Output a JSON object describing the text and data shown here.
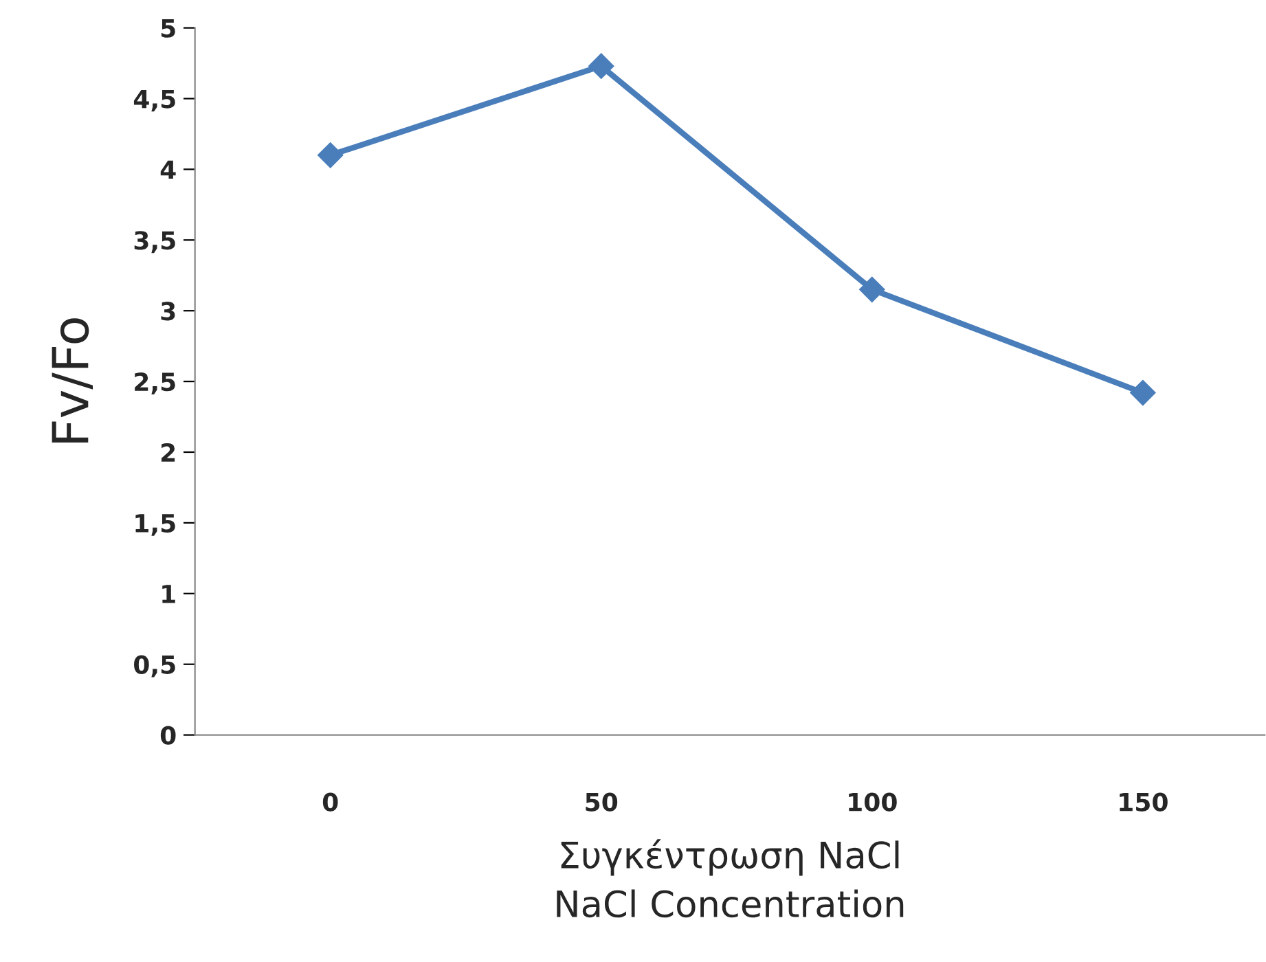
{
  "chart_data": {
    "type": "line",
    "categories": [
      "0",
      "50",
      "100",
      "150"
    ],
    "series": [
      {
        "color": "#4a7ebb",
        "values": [
          4.1,
          4.73,
          3.15,
          2.42
        ]
      }
    ],
    "ylabel": "Fv/Fo",
    "xlabel": "Συγκέντρωση NaCl\nNaCl Concentration",
    "ylim": [
      0,
      5
    ],
    "yticks": [
      0,
      {
        "value": 0.5,
        "label": "0,5"
      },
      1,
      {
        "value": 1.5,
        "label": "1,5"
      },
      2,
      {
        "value": 2.5,
        "label": "2,5"
      },
      3,
      {
        "value": 3.5,
        "label": "3,5"
      },
      4,
      {
        "value": 4.5,
        "label": "4,5"
      },
      5
    ],
    "marker": "diamond",
    "line_style": "solid",
    "grid": false,
    "legend": false
  }
}
